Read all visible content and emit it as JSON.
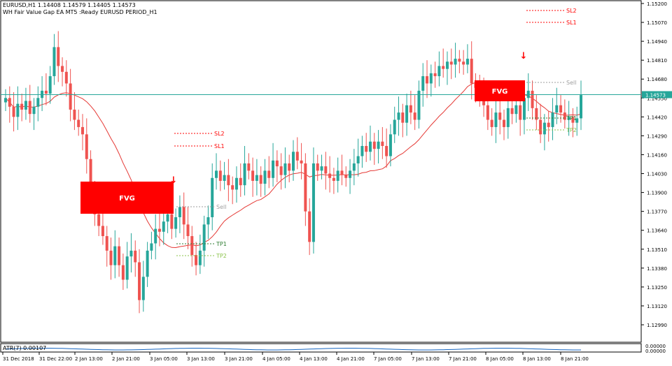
{
  "header": {
    "symbol_line": "EURUSD,H1  1.14408 1.14579 1.14405 1.14573",
    "ea_line": "WH Fair Value Gap EA MT5 :Ready EURUSD PERIOD_H1"
  },
  "current_price_label": "1.14573",
  "atr_label": "ATR(7) 0.00107",
  "atr_axis_top": "0.00000",
  "atr_axis_bottom": "0.00000",
  "colors": {
    "bull": "#26a69a",
    "bear": "#ef5350",
    "fvg": "#ff0000",
    "ma": "#e53935",
    "price_line": "#26a69a",
    "sl": "#ff0000",
    "tp1": "#2e7d32",
    "tp2": "#8bc34a",
    "sell": "#9e9e9e",
    "atr": "#1565c0"
  },
  "chart_data": {
    "type": "candlestick",
    "ylim": [
      1.1285,
      1.1528
    ],
    "yticks": [
      "1.15200",
      "1.15070",
      "1.14940",
      "1.14810",
      "1.14680",
      "1.14550",
      "1.14420",
      "1.14290",
      "1.14160",
      "1.14030",
      "1.13900",
      "1.13770",
      "1.13640",
      "1.13510",
      "1.13380",
      "1.13250",
      "1.13120",
      "1.12990"
    ],
    "xticks": [
      "31 Dec 2018",
      "31 Dec 22:00",
      "2 Jan 13:00",
      "2 Jan 21:00",
      "3 Jan 05:00",
      "3 Jan 13:00",
      "3 Jan 21:00",
      "4 Jan 05:00",
      "4 Jan 13:00",
      "4 Jan 21:00",
      "7 Jan 05:00",
      "7 Jan 13:00",
      "7 Jan 21:00",
      "8 Jan 05:00",
      "8 Jan 13:00",
      "8 Jan 21:00"
    ],
    "closes": [
      1.1455,
      1.1449,
      1.1442,
      1.1451,
      1.1447,
      1.1453,
      1.1444,
      1.1449,
      1.1455,
      1.146,
      1.1458,
      1.147,
      1.149,
      1.1477,
      1.1473,
      1.1465,
      1.1447,
      1.144,
      1.1435,
      1.143,
      1.1413,
      1.139,
      1.1375,
      1.1367,
      1.136,
      1.135,
      1.134,
      1.1353,
      1.134,
      1.133,
      1.1346,
      1.135,
      1.1342,
      1.1316,
      1.1332,
      1.135,
      1.1355,
      1.1365,
      1.1363,
      1.137,
      1.1375,
      1.1365,
      1.1373,
      1.138,
      1.1368,
      1.136,
      1.1347,
      1.134,
      1.135,
      1.1368,
      1.1373,
      1.14,
      1.1405,
      1.1398,
      1.1402,
      1.1395,
      1.1392,
      1.14,
      1.1395,
      1.141,
      1.1405,
      1.1398,
      1.1402,
      1.1396,
      1.1405,
      1.14,
      1.1412,
      1.1408,
      1.1402,
      1.141,
      1.1405,
      1.1418,
      1.1412,
      1.141,
      1.1377,
      1.1356,
      1.141,
      1.1405,
      1.1408,
      1.1403,
      1.14,
      1.1398,
      1.1405,
      1.1402,
      1.14,
      1.1405,
      1.141,
      1.1415,
      1.1422,
      1.1418,
      1.1425,
      1.142,
      1.1425,
      1.1422,
      1.1415,
      1.143,
      1.144,
      1.1445,
      1.1438,
      1.145,
      1.1445,
      1.144,
      1.146,
      1.147,
      1.1465,
      1.1472,
      1.147,
      1.1477,
      1.1475,
      1.148,
      1.1478,
      1.1482,
      1.148,
      1.1478,
      1.1482,
      1.1465,
      1.1462,
      1.1458,
      1.145,
      1.144,
      1.1435,
      1.1445,
      1.144,
      1.1435,
      1.1448,
      1.1444,
      1.145,
      1.144,
      1.1455,
      1.146,
      1.1448,
      1.144,
      1.143,
      1.1438,
      1.1435,
      1.1445,
      1.145,
      1.1445,
      1.144,
      1.1442,
      1.1438,
      1.1441,
      1.1457
    ]
  },
  "fvg_zones": [
    {
      "label": "FVG"
    },
    {
      "label": "FVG"
    }
  ],
  "trade_lines_left": {
    "sl2": "SL2",
    "sl1": "SL1",
    "sell": "Sell",
    "tp1": "TP1",
    "tp2": "TP2"
  },
  "trade_lines_right": {
    "sl2": "SL2",
    "sl1": "SL1",
    "sell": "Sell",
    "tp1": "TP1",
    "tp2": "TP2"
  },
  "arrow_glyph": "↓"
}
